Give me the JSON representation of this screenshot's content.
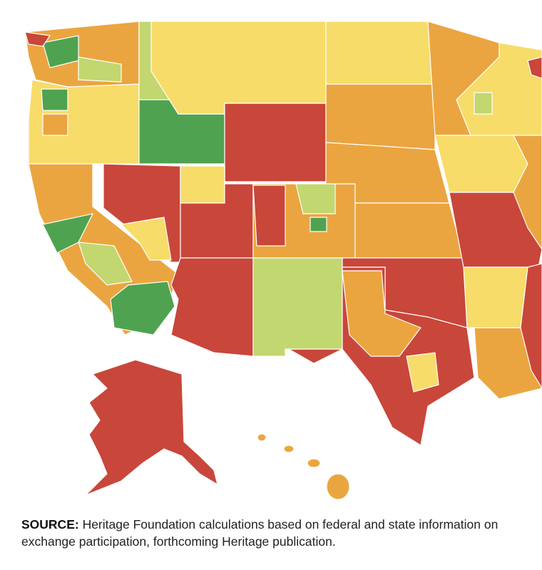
{
  "colors": {
    "red": "#c9463a",
    "orange": "#eba540",
    "yellow": "#f7dc69",
    "light_green": "#c2d76f",
    "green": "#4fa350"
  },
  "source": {
    "label": "SOURCE:",
    "text": " Heritage Foundation calculations based on federal and state information on exchange participation, forthcoming Heritage publication."
  }
}
